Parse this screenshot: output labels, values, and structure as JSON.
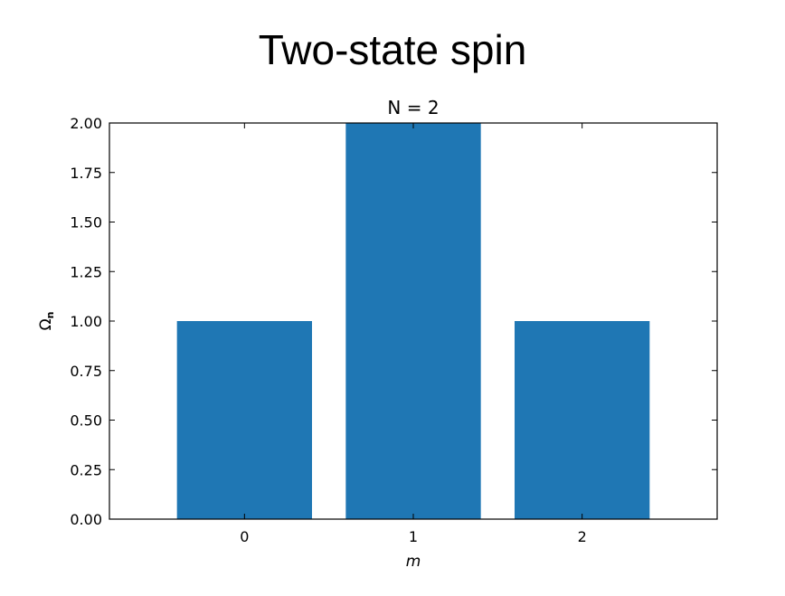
{
  "slide": {
    "title": "Two-state spin"
  },
  "chart_data": {
    "type": "bar",
    "title": "N = 2",
    "xlabel": "m",
    "ylabel": "Ω",
    "ylabel_subscript": "n",
    "categories": [
      "0",
      "1",
      "2"
    ],
    "values": [
      1.0,
      2.0,
      1.0
    ],
    "ylim": [
      0,
      2.0
    ],
    "yticks": [
      "0.00",
      "0.25",
      "0.50",
      "0.75",
      "1.00",
      "1.25",
      "1.50",
      "1.75",
      "2.00"
    ],
    "grid": false,
    "legend": "none",
    "bar_color": "#1f77b4"
  }
}
